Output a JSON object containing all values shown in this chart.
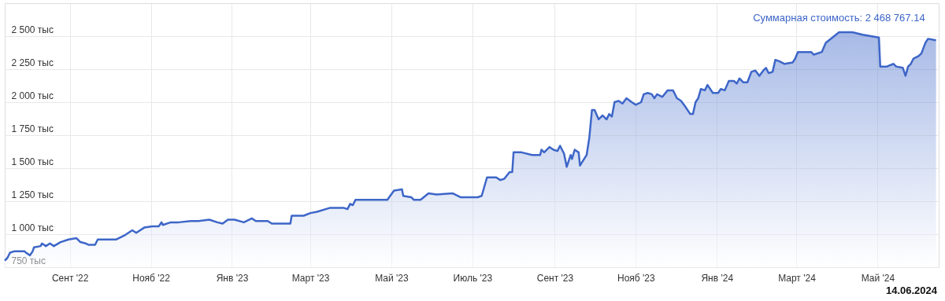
{
  "chart_data": {
    "type": "area",
    "grid": true,
    "xlim": [
      "2022-07-14",
      "2024-06-16"
    ],
    "ylim": [
      750,
      2750
    ],
    "xticks": [
      {
        "value": "2022-09-01",
        "label": "Сент '22"
      },
      {
        "value": "2022-11-01",
        "label": "Нояб '22"
      },
      {
        "value": "2023-01-01",
        "label": "Янв '23"
      },
      {
        "value": "2023-03-01",
        "label": "Март '23"
      },
      {
        "value": "2023-05-01",
        "label": "Май '23"
      },
      {
        "value": "2023-07-01",
        "label": "Июль '23"
      },
      {
        "value": "2023-09-01",
        "label": "Сент '23"
      },
      {
        "value": "2023-11-01",
        "label": "Нояб '23"
      },
      {
        "value": "2024-01-01",
        "label": "Янв '24"
      },
      {
        "value": "2024-03-01",
        "label": "Март '24"
      },
      {
        "value": "2024-05-01",
        "label": "Май '24"
      }
    ],
    "yticks": [
      {
        "value": 750,
        "label": "750 тыс"
      },
      {
        "value": 1000,
        "label": "1 000 тыс"
      },
      {
        "value": 1250,
        "label": "1 250 тыс"
      },
      {
        "value": 1500,
        "label": "1 500 тыс"
      },
      {
        "value": 1750,
        "label": "1 750 тыс"
      },
      {
        "value": 2000,
        "label": "2 000 тыс"
      },
      {
        "value": 2250,
        "label": "2 250 тыс"
      },
      {
        "value": 2500,
        "label": "2 500 тыс"
      }
    ],
    "x": [
      "2022-07-14",
      "2022-07-16",
      "2022-07-18",
      "2022-07-21",
      "2022-07-27",
      "2022-07-29",
      "2022-07-30",
      "2022-08-02",
      "2022-08-04",
      "2022-08-05",
      "2022-08-10",
      "2022-08-11",
      "2022-08-14",
      "2022-08-17",
      "2022-08-20",
      "2022-08-25",
      "2022-08-31",
      "2022-09-06",
      "2022-09-09",
      "2022-09-13",
      "2022-09-15",
      "2022-09-20",
      "2022-09-22",
      "2022-10-06",
      "2022-10-12",
      "2022-10-18",
      "2022-10-21",
      "2022-10-27",
      "2022-11-02",
      "2022-11-07",
      "2022-11-09",
      "2022-11-10",
      "2022-11-16",
      "2022-11-22",
      "2022-12-01",
      "2022-12-07",
      "2022-12-15",
      "2022-12-21",
      "2022-12-25",
      "2022-12-29",
      "2023-01-03",
      "2023-01-10",
      "2023-01-16",
      "2023-01-19",
      "2023-01-28",
      "2023-01-31",
      "2023-02-14",
      "2023-02-15",
      "2023-02-24",
      "2023-03-01",
      "2023-03-06",
      "2023-03-16",
      "2023-03-26",
      "2023-03-29",
      "2023-03-31",
      "2023-04-02",
      "2023-04-04",
      "2023-04-12",
      "2023-04-18",
      "2023-04-28",
      "2023-05-03",
      "2023-05-09",
      "2023-05-10",
      "2023-05-16",
      "2023-05-18",
      "2023-05-23",
      "2023-05-29",
      "2023-06-04",
      "2023-06-16",
      "2023-06-22",
      "2023-07-05",
      "2023-07-08",
      "2023-07-12",
      "2023-07-19",
      "2023-07-22",
      "2023-07-25",
      "2023-07-29",
      "2023-07-31",
      "2023-08-01",
      "2023-08-07",
      "2023-08-15",
      "2023-08-21",
      "2023-08-22",
      "2023-08-24",
      "2023-08-28",
      "2023-08-31",
      "2023-09-03",
      "2023-09-05",
      "2023-09-08",
      "2023-09-10",
      "2023-09-13",
      "2023-09-14",
      "2023-09-16",
      "2023-09-19",
      "2023-09-20",
      "2023-09-25",
      "2023-09-27",
      "2023-09-29",
      "2023-10-01",
      "2023-10-04",
      "2023-10-07",
      "2023-10-10",
      "2023-10-12",
      "2023-10-14",
      "2023-10-16",
      "2023-10-19",
      "2023-10-22",
      "2023-10-25",
      "2023-10-29",
      "2023-11-01",
      "2023-11-05",
      "2023-11-07",
      "2023-11-10",
      "2023-11-13",
      "2023-11-15",
      "2023-11-17",
      "2023-11-21",
      "2023-11-25",
      "2023-11-29",
      "2023-12-02",
      "2023-12-05",
      "2023-12-08",
      "2023-12-12",
      "2023-12-14",
      "2023-12-16",
      "2023-12-18",
      "2023-12-20",
      "2023-12-23",
      "2023-12-25",
      "2023-12-29",
      "2024-01-02",
      "2024-01-04",
      "2024-01-07",
      "2024-01-10",
      "2024-01-14",
      "2024-01-16",
      "2024-01-18",
      "2024-01-21",
      "2024-01-24",
      "2024-01-27",
      "2024-01-30",
      "2024-02-02",
      "2024-02-05",
      "2024-02-07",
      "2024-02-09",
      "2024-02-12",
      "2024-02-14",
      "2024-02-17",
      "2024-02-21",
      "2024-02-27",
      "2024-02-29",
      "2024-03-02",
      "2024-03-12",
      "2024-03-14",
      "2024-03-20",
      "2024-03-23",
      "2024-04-02",
      "2024-04-12",
      "2024-04-20",
      "2024-05-02",
      "2024-05-03",
      "2024-05-08",
      "2024-05-13",
      "2024-05-15",
      "2024-05-20",
      "2024-05-22",
      "2024-05-24",
      "2024-05-26",
      "2024-05-28",
      "2024-06-01",
      "2024-06-03",
      "2024-06-06",
      "2024-06-08",
      "2024-06-14"
    ],
    "series": [
      {
        "color": "#3d66c8",
        "values": [
          800,
          820,
          860,
          870,
          870,
          870,
          860,
          840,
          870,
          900,
          910,
          930,
          910,
          930,
          910,
          940,
          960,
          970,
          940,
          930,
          920,
          920,
          960,
          960,
          990,
          1030,
          1010,
          1050,
          1060,
          1060,
          1090,
          1070,
          1090,
          1090,
          1100,
          1100,
          1110,
          1090,
          1080,
          1110,
          1110,
          1090,
          1120,
          1100,
          1100,
          1080,
          1080,
          1140,
          1140,
          1160,
          1170,
          1200,
          1200,
          1190,
          1230,
          1220,
          1260,
          1260,
          1260,
          1260,
          1330,
          1340,
          1290,
          1280,
          1260,
          1260,
          1310,
          1300,
          1310,
          1280,
          1280,
          1290,
          1430,
          1430,
          1410,
          1420,
          1470,
          1470,
          1620,
          1620,
          1600,
          1600,
          1640,
          1620,
          1660,
          1640,
          1630,
          1670,
          1610,
          1510,
          1600,
          1570,
          1640,
          1620,
          1520,
          1600,
          1730,
          1940,
          1940,
          1870,
          1900,
          1870,
          1910,
          1890,
          2000,
          2010,
          1990,
          2030,
          2000,
          1980,
          2000,
          2060,
          2070,
          2060,
          2030,
          2060,
          2040,
          2090,
          2090,
          2030,
          2010,
          1970,
          1910,
          1910,
          2000,
          2030,
          2100,
          2090,
          2130,
          2070,
          2070,
          2100,
          2090,
          2160,
          2160,
          2140,
          2180,
          2150,
          2150,
          2230,
          2240,
          2200,
          2240,
          2260,
          2220,
          2230,
          2320,
          2310,
          2290,
          2300,
          2330,
          2380,
          2380,
          2360,
          2380,
          2450,
          2530,
          2530,
          2510,
          2490,
          2270,
          2270,
          2290,
          2270,
          2260,
          2200,
          2270,
          2290,
          2330,
          2350,
          2370,
          2450,
          2480,
          2469
        ]
      }
    ],
    "annotations": [
      {
        "text": "Суммарная стоимость: 2 468 767.14",
        "x": "2024-06-14",
        "y": 2469
      },
      "14.06.2024"
    ]
  }
}
